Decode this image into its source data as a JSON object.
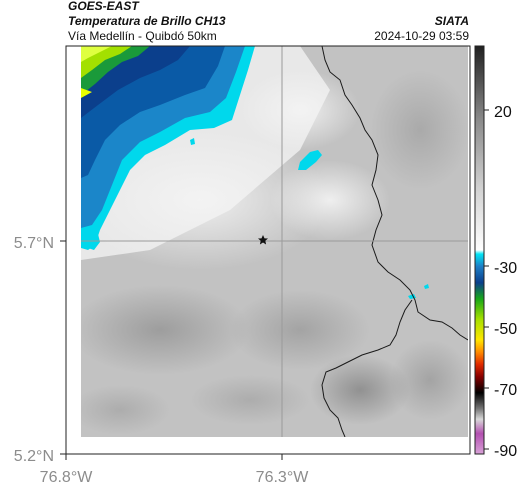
{
  "header": {
    "satellite": "GOES-EAST",
    "product": "Temperatura de Brillo CH13",
    "route": "Vía Medellín - Quibdó 50km",
    "org": "SIATA",
    "datetime": "2024-10-29 03:59"
  },
  "axes": {
    "lat_ticks": [
      "5.7°N",
      "5.2°N"
    ],
    "lon_ticks": [
      "76.8°W",
      "76.3°W"
    ]
  },
  "colorbar": {
    "ticks": [
      "20",
      "-30",
      "-50",
      "-70",
      "-90"
    ]
  },
  "map": {
    "marker": "star",
    "marker_color": "#111111",
    "gridline_color": "#9a9a9a"
  }
}
